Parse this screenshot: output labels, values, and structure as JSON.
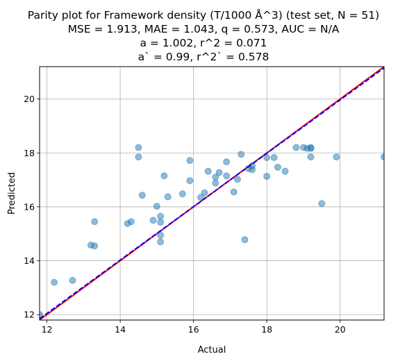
{
  "chart_data": {
    "type": "scatter",
    "title_lines": [
      "Parity plot for Framework density (T/1000 Å^3) (test set, N = 51)",
      "MSE = 1.913, MAE = 1.043, q = 0.573, AUC = N/A",
      "a = 1.002, r^2 = 0.071",
      "a` = 0.99, r^2` = 0.578"
    ],
    "xlabel": "Actual",
    "ylabel": "Predicted",
    "xlim": [
      11.8,
      21.2
    ],
    "ylim": [
      11.8,
      21.2
    ],
    "xticks": [
      12,
      14,
      16,
      18,
      20
    ],
    "yticks": [
      12,
      14,
      16,
      18,
      20
    ],
    "grid": true,
    "colors": {
      "points": "#1f77b4",
      "parity_line": "#ff0000",
      "fit_line": "#0000ff",
      "grid": "#b0b0b0"
    },
    "parity_line": {
      "style": "solid",
      "color": "red"
    },
    "fit_line": {
      "style": "dashed",
      "color": "blue",
      "slope": 0.99
    },
    "points": [
      [
        11.8,
        12.0
      ],
      [
        12.2,
        13.2
      ],
      [
        12.7,
        13.27
      ],
      [
        13.2,
        14.58
      ],
      [
        13.3,
        14.55
      ],
      [
        13.3,
        15.45
      ],
      [
        14.2,
        15.38
      ],
      [
        14.3,
        15.45
      ],
      [
        14.5,
        18.2
      ],
      [
        14.5,
        17.85
      ],
      [
        14.6,
        16.43
      ],
      [
        14.9,
        15.5
      ],
      [
        15.0,
        16.02
      ],
      [
        15.1,
        15.65
      ],
      [
        15.1,
        15.43
      ],
      [
        15.1,
        14.95
      ],
      [
        15.1,
        14.7
      ],
      [
        15.2,
        17.15
      ],
      [
        15.3,
        16.37
      ],
      [
        15.7,
        16.48
      ],
      [
        15.9,
        17.72
      ],
      [
        15.9,
        16.97
      ],
      [
        16.2,
        16.35
      ],
      [
        16.3,
        16.52
      ],
      [
        16.4,
        17.32
      ],
      [
        16.6,
        17.1
      ],
      [
        16.6,
        16.88
      ],
      [
        16.7,
        17.27
      ],
      [
        16.9,
        17.67
      ],
      [
        16.9,
        17.15
      ],
      [
        17.1,
        16.55
      ],
      [
        17.2,
        17.02
      ],
      [
        17.3,
        17.95
      ],
      [
        17.4,
        14.78
      ],
      [
        17.5,
        17.42
      ],
      [
        17.6,
        17.52
      ],
      [
        17.6,
        17.38
      ],
      [
        18.0,
        17.83
      ],
      [
        18.0,
        17.13
      ],
      [
        18.2,
        17.83
      ],
      [
        18.3,
        17.47
      ],
      [
        18.5,
        17.32
      ],
      [
        18.8,
        18.2
      ],
      [
        19.0,
        18.2
      ],
      [
        19.1,
        18.17
      ],
      [
        19.2,
        18.2
      ],
      [
        19.2,
        18.17
      ],
      [
        19.2,
        17.85
      ],
      [
        19.5,
        16.12
      ],
      [
        19.9,
        17.85
      ],
      [
        21.2,
        17.85
      ]
    ]
  }
}
